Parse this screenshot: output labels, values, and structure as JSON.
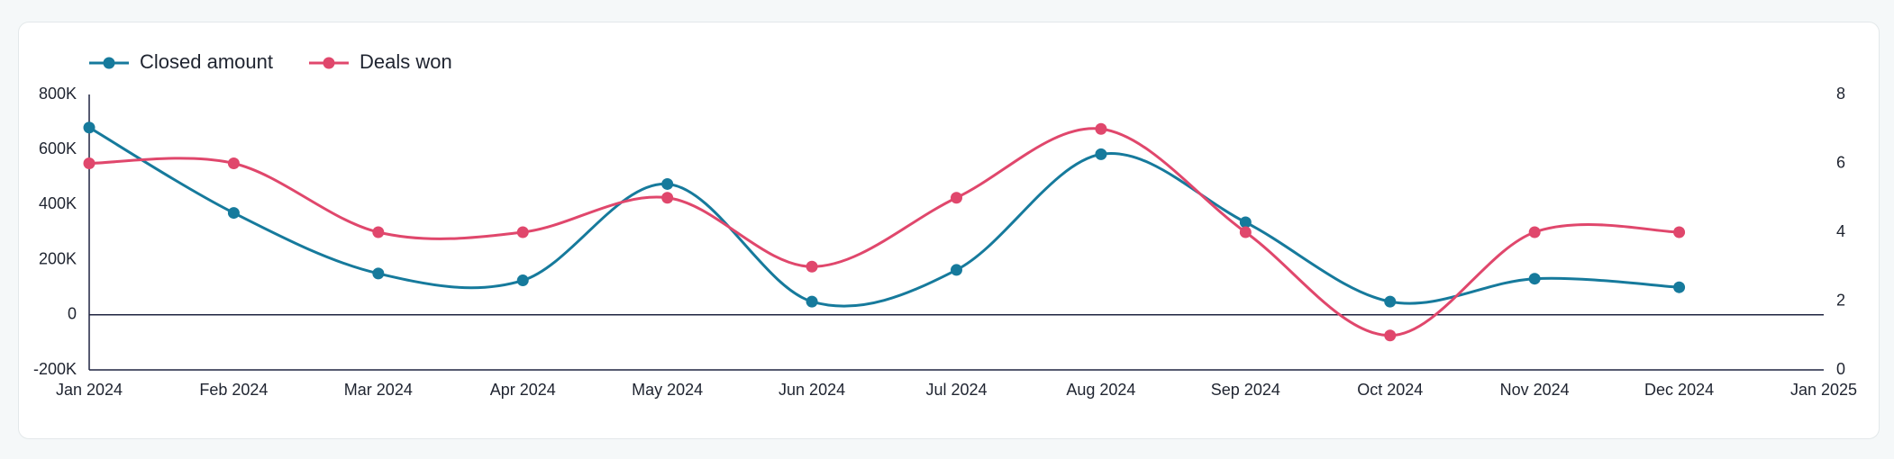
{
  "chart_data": {
    "type": "line",
    "x": [
      "Jan 2024",
      "Feb 2024",
      "Mar 2024",
      "Apr 2024",
      "May 2024",
      "Jun 2024",
      "Jul 2024",
      "Aug 2024",
      "Sep 2024",
      "Oct 2024",
      "Nov 2024",
      "Dec 2024"
    ],
    "xticks": [
      "Jan 2024",
      "Feb 2024",
      "Mar 2024",
      "Apr 2024",
      "May 2024",
      "Jun 2024",
      "Jul 2024",
      "Aug 2024",
      "Sep 2024",
      "Oct 2024",
      "Nov 2024",
      "Dec 2024",
      "Jan 2025"
    ],
    "series": [
      {
        "name": "Closed amount",
        "color": "#167a9c",
        "values": [
          680000,
          370000,
          150000,
          125000,
          475000,
          48000,
          163000,
          583000,
          336000,
          48000,
          131000,
          100000
        ]
      },
      {
        "name": "Deals won",
        "color": "#e0476c",
        "axis": "y2",
        "values": [
          6,
          6,
          4,
          4,
          5,
          3,
          5,
          7,
          4,
          1,
          4,
          4
        ]
      }
    ],
    "ylim": [
      -200000,
      800000
    ],
    "yticks": [
      {
        "value": -200000,
        "label": "-200K"
      },
      0,
      {
        "value": 200000,
        "label": "200K"
      },
      {
        "value": 400000,
        "label": "400K"
      },
      {
        "value": 600000,
        "label": "600K"
      },
      {
        "value": 800000,
        "label": "800K"
      }
    ],
    "y2lim": [
      0,
      8
    ],
    "y2ticks": [
      0,
      2,
      4,
      6,
      8
    ],
    "legend": "top-left"
  }
}
